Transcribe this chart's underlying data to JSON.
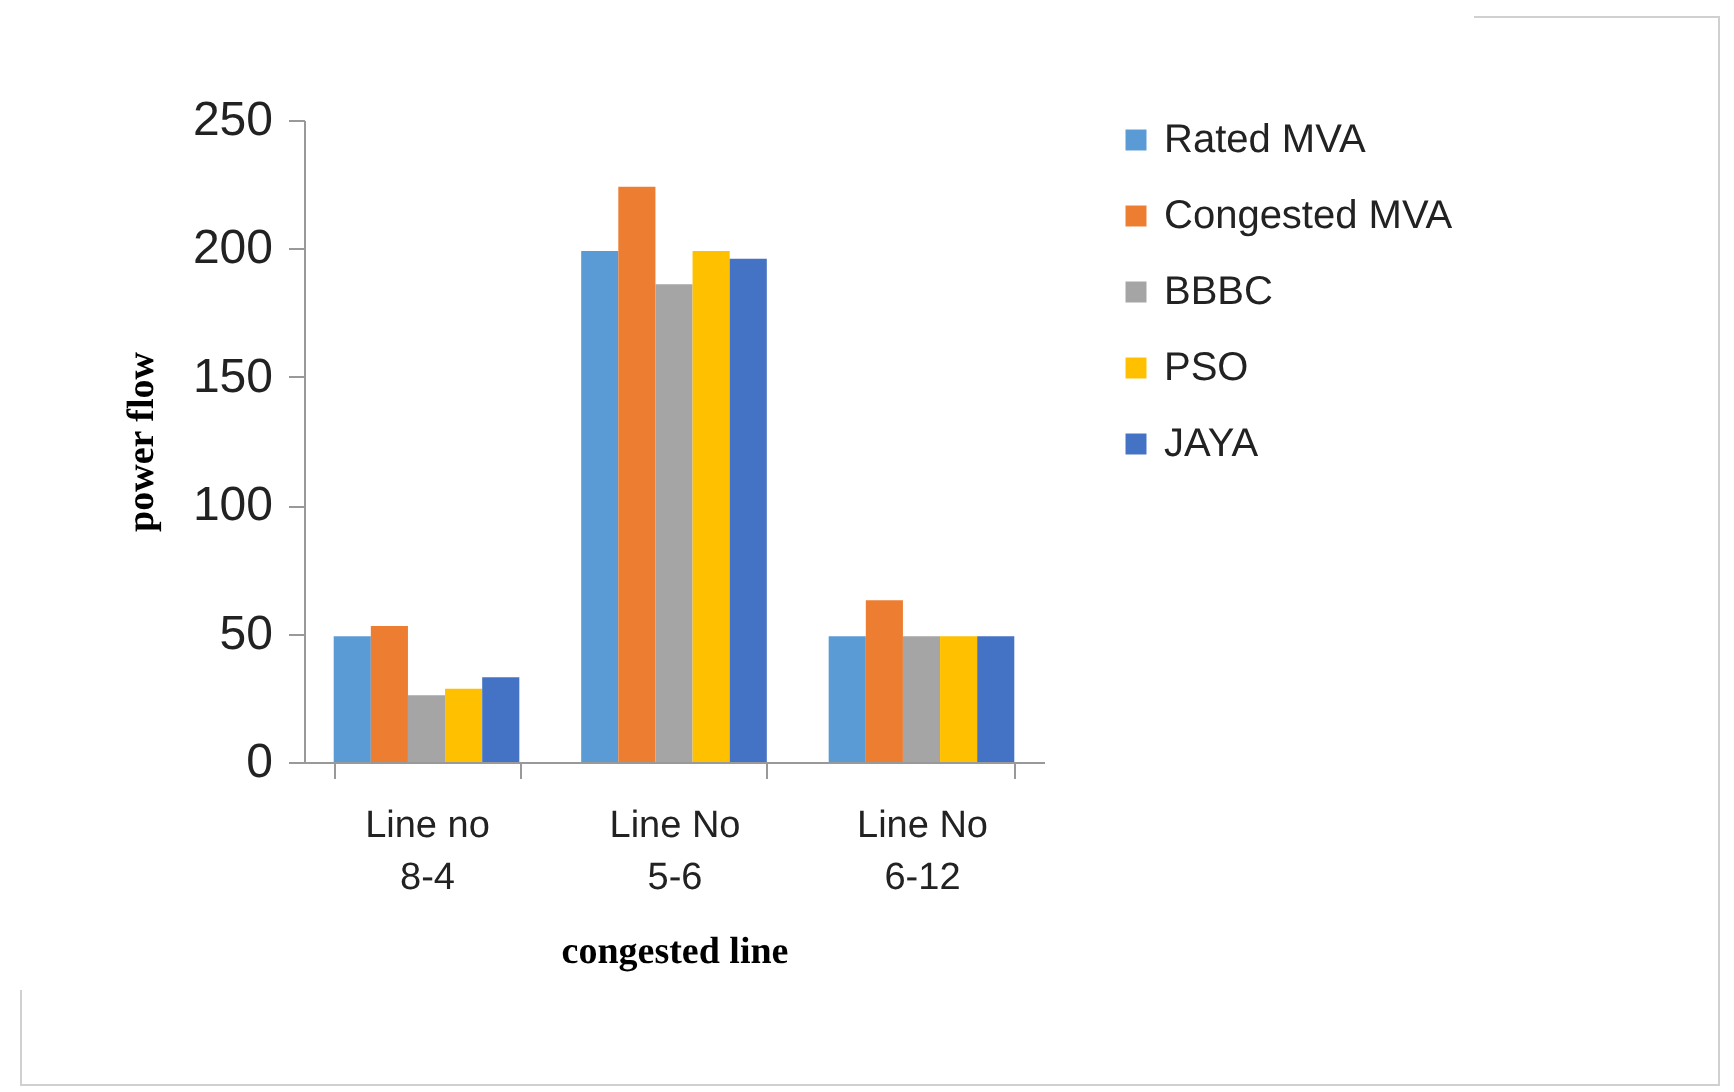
{
  "chart_data": {
    "type": "bar",
    "xlabel": "congested line",
    "ylabel": "power flow",
    "categories": [
      "Line no 8-4",
      "Line No 5-6",
      "Line No 6-12"
    ],
    "series": [
      {
        "name": "Rated MVA",
        "color": "#5b9bd5",
        "values": [
          49,
          199,
          49
        ]
      },
      {
        "name": "Congested MVA",
        "color": "#ed7d31",
        "values": [
          53,
          224,
          63
        ]
      },
      {
        "name": "BBBC",
        "color": "#a5a5a5",
        "values": [
          26,
          186,
          49
        ]
      },
      {
        "name": "PSO",
        "color": "#ffc000",
        "values": [
          28.5,
          199,
          49
        ]
      },
      {
        "name": "JAYA",
        "color": "#4472c4",
        "values": [
          33,
          196,
          49
        ]
      }
    ],
    "ylim": [
      0,
      250
    ],
    "yticks": [
      0,
      50,
      100,
      150,
      200,
      250
    ],
    "grid": false,
    "legend": "right"
  }
}
